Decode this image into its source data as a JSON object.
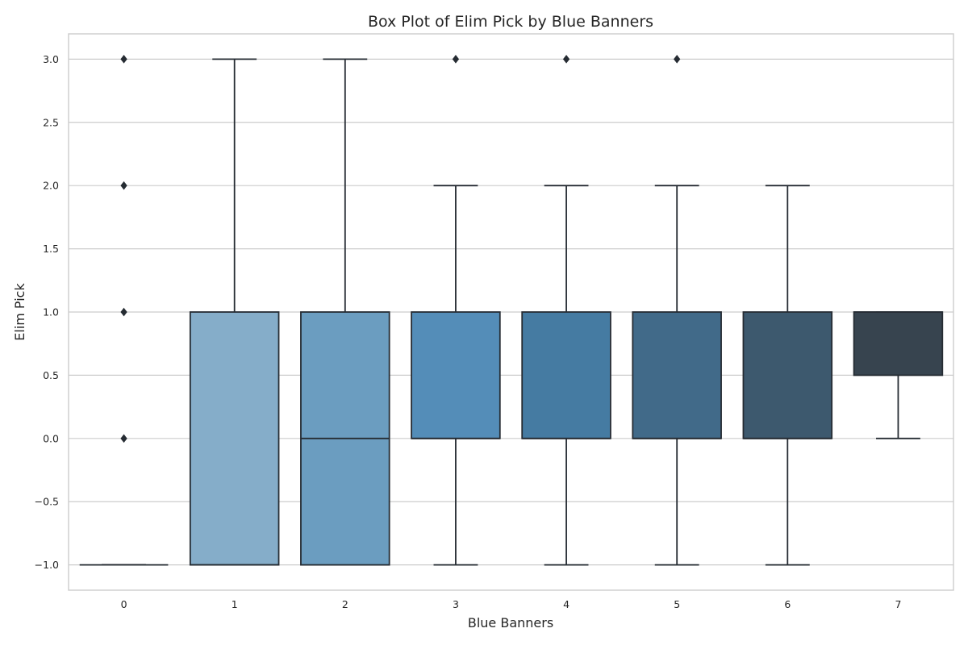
{
  "chart_data": {
    "type": "box",
    "title": "Box Plot of Elim Pick by Blue Banners",
    "xlabel": "Blue Banners",
    "ylabel": "Elim Pick",
    "ylim": [
      -1.2,
      3.2
    ],
    "yticks": [
      -1.0,
      -0.5,
      0.0,
      0.5,
      1.0,
      1.5,
      2.0,
      2.5,
      3.0
    ],
    "ytick_labels": [
      "−1.0",
      "−0.5",
      "0.0",
      "0.5",
      "1.0",
      "1.5",
      "2.0",
      "2.5",
      "3.0"
    ],
    "grid": "horizontal",
    "categories": [
      "0",
      "1",
      "2",
      "3",
      "4",
      "5",
      "6",
      "7"
    ],
    "boxes": [
      {
        "category": "0",
        "whisker_low": -1,
        "q1": -1,
        "median": -1,
        "q3": -1,
        "whisker_high": -1,
        "fliers": [
          0,
          1,
          2,
          3
        ],
        "color": "#93bcd9"
      },
      {
        "category": "1",
        "whisker_low": -1,
        "q1": -1,
        "median": -1,
        "q3": 1,
        "whisker_high": 3,
        "fliers": [],
        "color": "#85adc9"
      },
      {
        "category": "2",
        "whisker_low": -1,
        "q1": -1,
        "median": 0,
        "q3": 1,
        "whisker_high": 3,
        "fliers": [],
        "color": "#6b9dc0"
      },
      {
        "category": "3",
        "whisker_low": -1,
        "q1": 0,
        "median": 0,
        "q3": 1,
        "whisker_high": 2,
        "fliers": [
          3
        ],
        "color": "#548db8"
      },
      {
        "category": "4",
        "whisker_low": -1,
        "q1": 0,
        "median": 0,
        "q3": 1,
        "whisker_high": 2,
        "fliers": [
          3
        ],
        "color": "#457ba2"
      },
      {
        "category": "5",
        "whisker_low": -1,
        "q1": 0,
        "median": 0,
        "q3": 1,
        "whisker_high": 2,
        "fliers": [
          3
        ],
        "color": "#416a89"
      },
      {
        "category": "6",
        "whisker_low": -1,
        "q1": 0,
        "median": 0,
        "q3": 1,
        "whisker_high": 2,
        "fliers": [],
        "color": "#3d596e"
      },
      {
        "category": "7",
        "whisker_low": 0,
        "q1": 0.5,
        "median": 1,
        "q3": 1,
        "whisker_high": 1,
        "fliers": [],
        "color": "#37444f"
      }
    ]
  }
}
